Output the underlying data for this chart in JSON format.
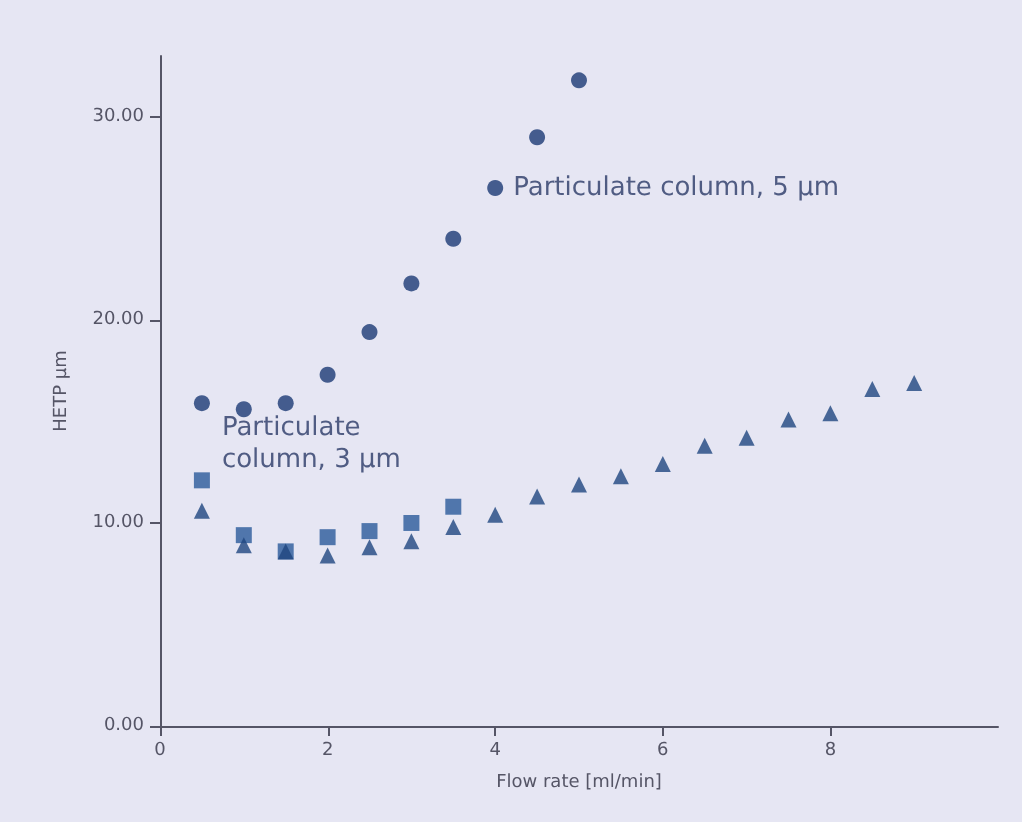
{
  "chart_data": {
    "type": "scatter",
    "xlabel": "Flow rate [ml/min]",
    "ylabel": "HETP µm",
    "xlim": [
      0,
      10
    ],
    "xticks": [
      0,
      2,
      4,
      6,
      8
    ],
    "ylim": [
      0,
      33
    ],
    "yticks": [
      {
        "value": 0,
        "label": "0.00"
      },
      {
        "value": 10,
        "label": "10.00"
      },
      {
        "value": 20,
        "label": "20.00"
      },
      {
        "value": 30,
        "label": "30.00"
      }
    ],
    "legend": false,
    "grid": false,
    "x": [
      0.5,
      1,
      1.5,
      2,
      2.5,
      3,
      3.5,
      4,
      4.5,
      5,
      5.5,
      6,
      6.5,
      7,
      7.5,
      8,
      8.5,
      9
    ],
    "series": [
      {
        "name": "Particulate column, 5 µm",
        "color": "#1c3a74",
        "marker": "circle",
        "values": [
          15.9,
          15.6,
          15.9,
          17.3,
          19.4,
          21.8,
          24.0,
          26.5,
          29.0,
          31.8,
          null,
          null,
          null,
          null,
          null,
          null,
          null,
          null
        ]
      },
      {
        "name": "Particulate column, 3 µm",
        "color": "#2a5a9a",
        "marker": "square",
        "values": [
          12.1,
          9.4,
          8.6,
          9.3,
          9.6,
          10.0,
          10.8,
          null,
          null,
          null,
          null,
          null,
          null,
          null,
          null,
          null,
          null,
          null
        ]
      },
      {
        "color": "#1f4680",
        "marker": "triangle",
        "values": [
          10.6,
          8.9,
          8.6,
          8.4,
          8.8,
          9.1,
          9.8,
          10.4,
          11.3,
          11.9,
          12.3,
          12.9,
          13.8,
          14.2,
          15.1,
          15.4,
          16.6,
          16.9
        ]
      }
    ]
  }
}
